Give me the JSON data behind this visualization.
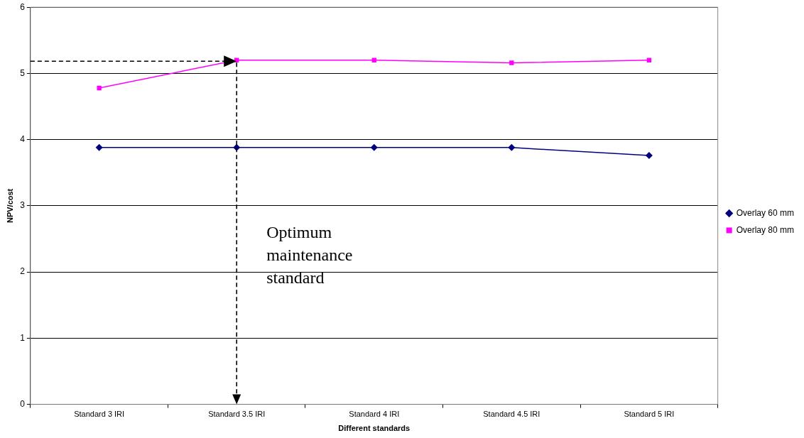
{
  "chart_data": {
    "type": "line",
    "xlabel": "Different standards",
    "ylabel": "NPV/cost",
    "categories": [
      "Standard 3 IRI",
      "Standard 3.5 IRI",
      "Standard 4 IRI",
      "Standard 4.5 IRI",
      "Standard 5 IRI"
    ],
    "series": [
      {
        "name": "Overlay 60 mm",
        "color": "#000080",
        "marker": "diamond",
        "values": [
          3.88,
          3.88,
          3.88,
          3.88,
          3.76
        ]
      },
      {
        "name": "Overlay 80 mm",
        "color": "#ff00ff",
        "marker": "square",
        "values": [
          4.78,
          5.2,
          5.2,
          5.16,
          5.2
        ]
      }
    ],
    "ylim": [
      0,
      6
    ],
    "yticks": [
      0,
      1,
      2,
      3,
      4,
      5,
      6
    ],
    "grid": "y",
    "legend": "right",
    "annotations": [
      "Optimum maintenance standard"
    ]
  }
}
